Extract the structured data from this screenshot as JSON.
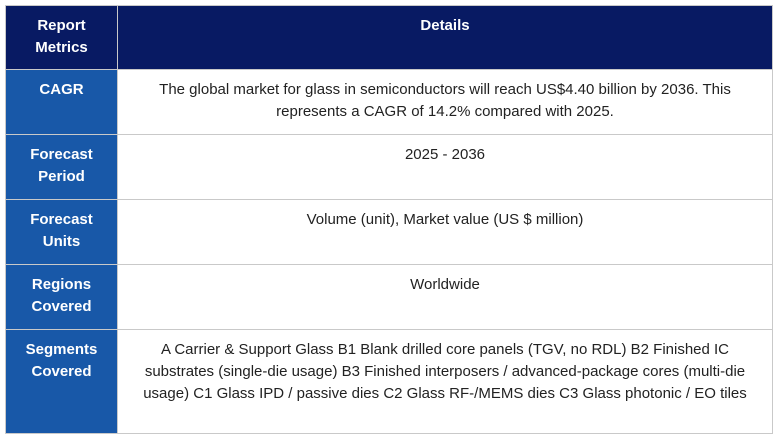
{
  "table": {
    "header": {
      "metric": "Report Metrics",
      "details": "Details"
    },
    "rows": [
      {
        "metric": "CAGR",
        "details": "The global market for glass in semiconductors will reach US$4.40 billion by 2036. This represents a CAGR of 14.2% compared with 2025."
      },
      {
        "metric": "Forecast Period",
        "details": "2025 - 2036"
      },
      {
        "metric": "Forecast Units",
        "details": "Volume (unit), Market value (US $ million)"
      },
      {
        "metric": "Regions Covered",
        "details": "Worldwide"
      },
      {
        "metric": "Segments Covered",
        "details": "A Carrier & Support Glass B1 Blank drilled core panels (TGV, no RDL) B2 Finished IC substrates (single-die usage) B3 Finished interposers / advanced-package cores (multi-die usage) C1 Glass IPD / passive dies C2 Glass RF‑/MEMS dies C3 Glass photonic / EO tiles"
      }
    ]
  },
  "colors": {
    "header_bg": "#081a63",
    "metric_bg": "#1858a8",
    "border": "#c9c9c9",
    "text_dark": "#222222",
    "text_light": "#ffffff"
  }
}
